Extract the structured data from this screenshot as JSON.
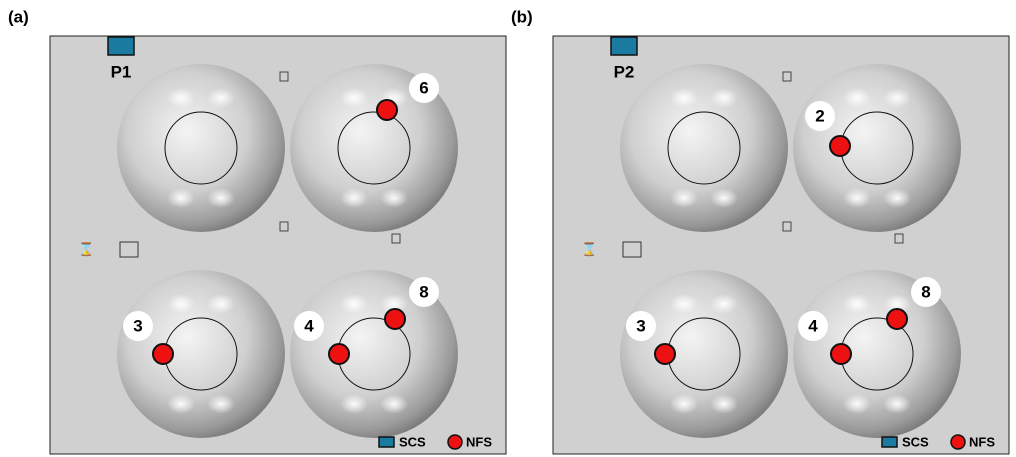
{
  "panels": [
    {
      "label": "(a)",
      "port": "P1",
      "markers": [
        "6",
        "3",
        "4",
        "8"
      ],
      "legend": [
        "SCS",
        "NFS"
      ]
    },
    {
      "label": "(b)",
      "port": "P2",
      "markers": [
        "2",
        "3",
        "4",
        "8"
      ],
      "legend": [
        "SCS",
        "NFS"
      ]
    }
  ]
}
